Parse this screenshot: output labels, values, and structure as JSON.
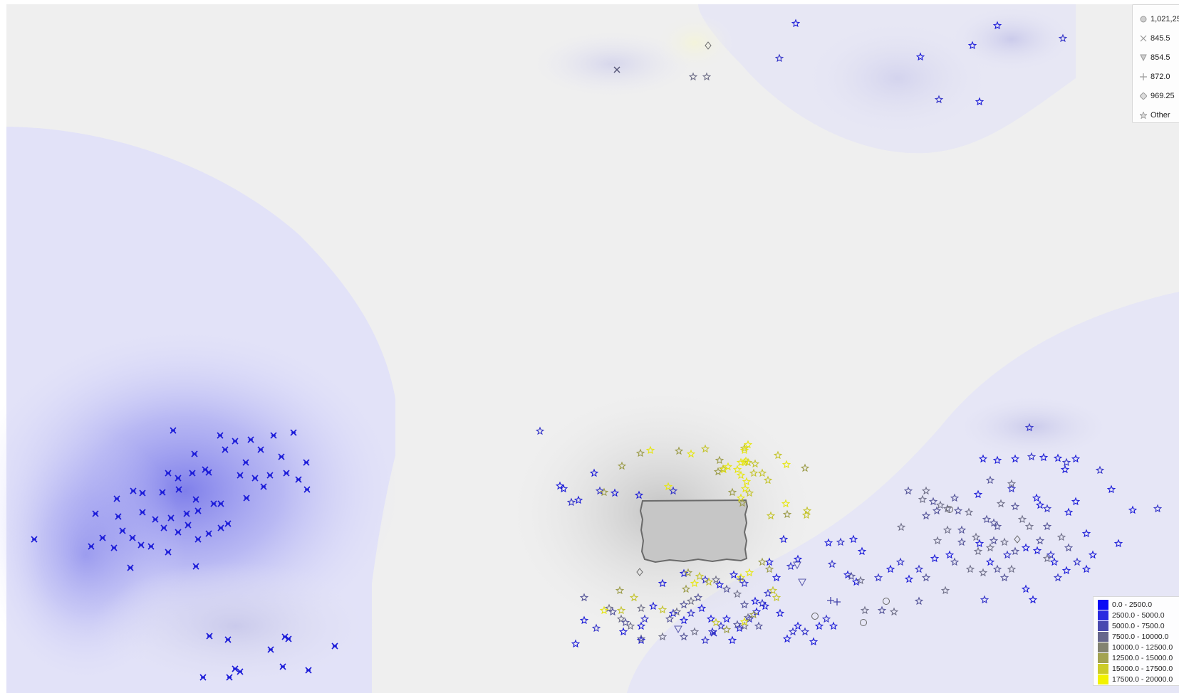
{
  "map": {
    "point_colors": [
      "#1a1ad8",
      "#3333c8",
      "#555599",
      "#6f6f88",
      "#7e7e68",
      "#9b9b48",
      "#c4c42c",
      "#e6e60e"
    ],
    "markers": {
      "x_cluster": "cross-x-marker",
      "stars": "star-marker",
      "circle": "circle-marker",
      "triangle": "triangle-down-marker",
      "plus": "plus-marker",
      "diamond": "diamond-marker"
    }
  },
  "legend_shapes": {
    "items": [
      {
        "symbol": "circle-icon",
        "label": "1,021,25"
      },
      {
        "symbol": "cross-x-icon",
        "label": "845.5"
      },
      {
        "symbol": "triangle-down-icon",
        "label": "854.5"
      },
      {
        "symbol": "plus-icon",
        "label": "872.0"
      },
      {
        "symbol": "diamond-icon",
        "label": "969.25"
      },
      {
        "symbol": "star-icon",
        "label": "Other"
      }
    ]
  },
  "legend_colors": {
    "items": [
      {
        "label": "0.0 - 2500.0",
        "color": "#0b0bf5"
      },
      {
        "label": "2500.0 - 5000.0",
        "color": "#2a2ae0"
      },
      {
        "label": "5000.0 - 7500.0",
        "color": "#4a4ab0"
      },
      {
        "label": "7500.0 - 10000.0",
        "color": "#66668c"
      },
      {
        "label": "10000.0 - 12500.0",
        "color": "#838370"
      },
      {
        "label": "12500.0 - 15000.0",
        "color": "#a3a350"
      },
      {
        "label": "15000.0 - 17500.0",
        "color": "#cccc28"
      },
      {
        "label": "17500.0 - 20000.0",
        "color": "#f2f200"
      }
    ]
  }
}
